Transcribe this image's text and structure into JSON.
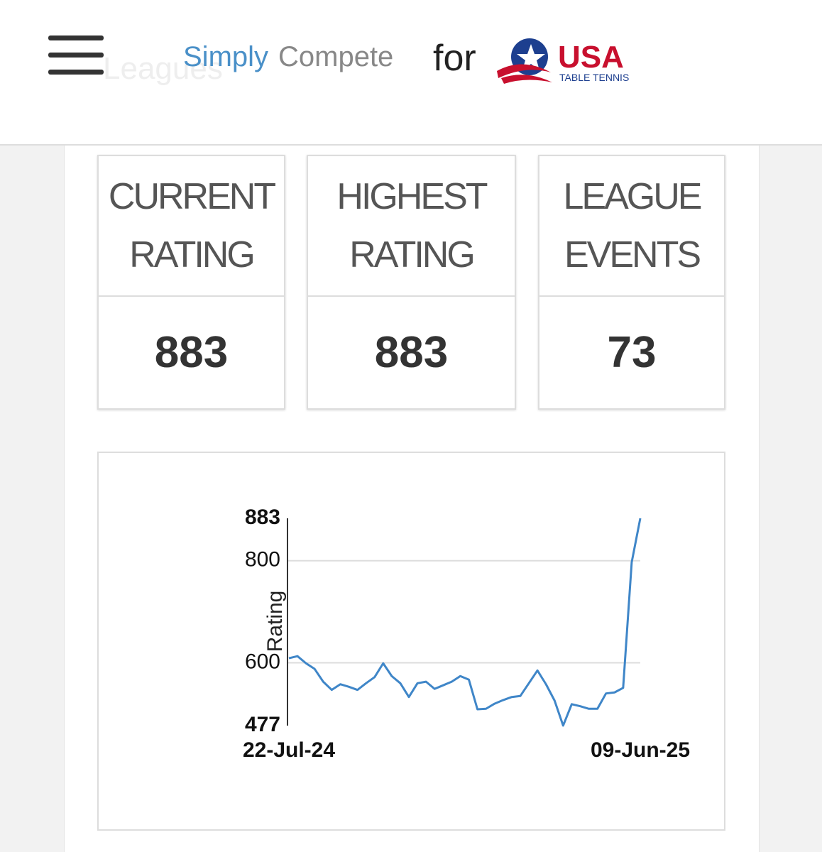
{
  "header": {
    "ghost": "Leagues",
    "brand_a": "Simply",
    "brand_b": "Compete",
    "for": "for",
    "org": "USA",
    "org_sub": "TABLE TENNIS"
  },
  "stats": [
    {
      "label": "CURRENT RATING",
      "value": 883
    },
    {
      "label": "HIGHEST RATING",
      "value": 883
    },
    {
      "label": "LEAGUE EVENTS",
      "value": 73
    }
  ],
  "chart_data": {
    "type": "line",
    "y_label": "Rating",
    "color": "#3f86c8",
    "grid": true,
    "categories": [
      "22-Jul-24",
      null,
      null,
      null,
      null,
      null,
      null,
      null,
      null,
      null,
      null,
      null,
      null,
      null,
      null,
      null,
      null,
      null,
      null,
      null,
      null,
      null,
      null,
      null,
      null,
      null,
      null,
      null,
      null,
      null,
      null,
      null,
      null,
      null,
      null,
      null,
      null,
      null,
      null,
      null,
      null,
      "09-Jun-25"
    ],
    "values": [
      609,
      613,
      599,
      588,
      563,
      547,
      558,
      553,
      547,
      560,
      572,
      599,
      574,
      560,
      533,
      560,
      563,
      549,
      556,
      563,
      574,
      567,
      509,
      510,
      520,
      527,
      533,
      535,
      560,
      585,
      558,
      526,
      477,
      519,
      515,
      510,
      510,
      540,
      542,
      551,
      797,
      883
    ],
    "ylim": [
      477,
      883
    ],
    "yticks": [
      477,
      600,
      800,
      883
    ]
  }
}
